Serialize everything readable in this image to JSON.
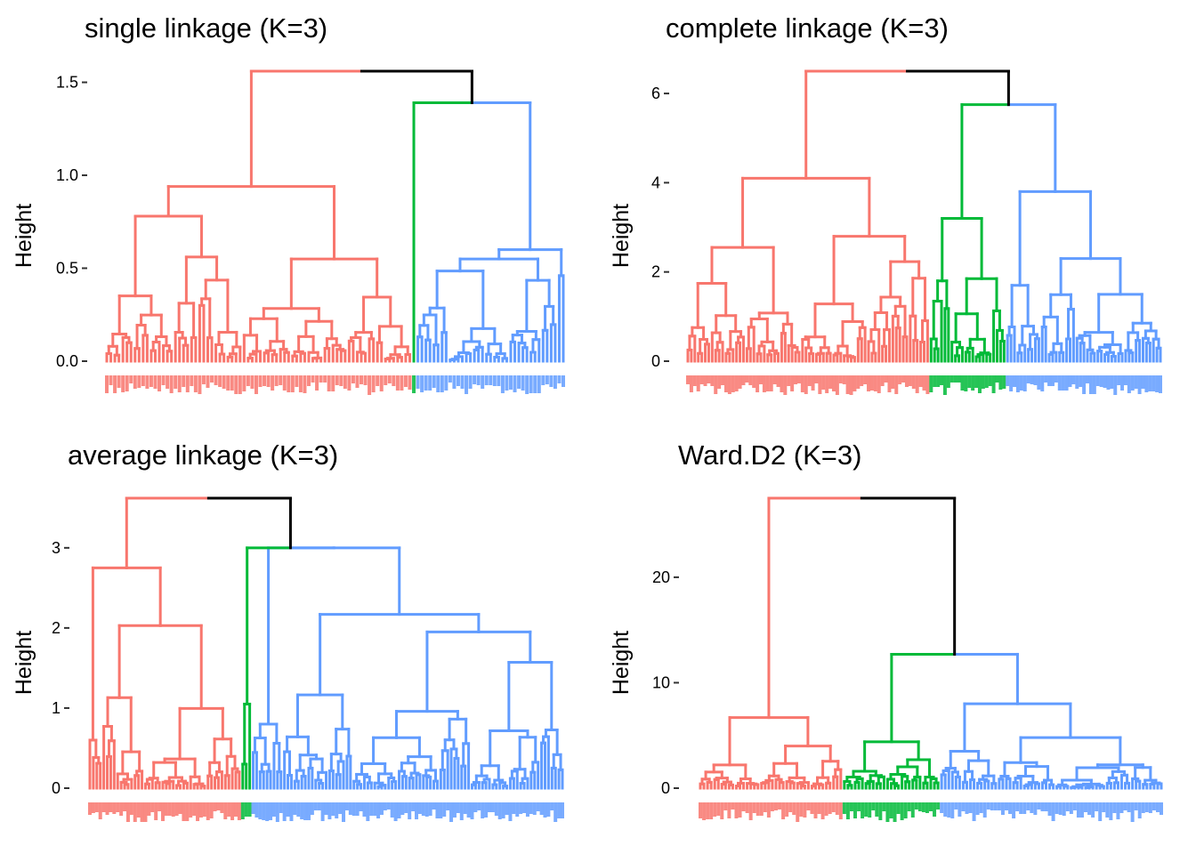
{
  "colors": {
    "cluster1": "#F8766D",
    "cluster2": "#00BA38",
    "cluster3": "#619CFF",
    "root": "#000000"
  },
  "chart_data": [
    {
      "type": "dendrogram",
      "title": "single linkage (K=3)",
      "ylabel": "Height",
      "yticks": [
        0.0,
        0.5,
        1.0,
        1.5
      ],
      "tick_labels": [
        "0.0",
        "0.5",
        "1.0",
        "1.5"
      ],
      "ylim": [
        0,
        1.56
      ],
      "k": 3,
      "root_height": 1.56,
      "clusters": [
        {
          "color": "cluster1",
          "leaves": 76,
          "height": 0.94,
          "sub": [
            {
              "frac": 0.45,
              "h": 0.78
            },
            {
              "frac": 0.55,
              "h": 0.55
            }
          ]
        },
        {
          "color": "cluster2",
          "leaves": 1,
          "height": 0.0,
          "sub": []
        },
        {
          "color": "cluster3",
          "leaves": 37,
          "height": 0.6,
          "sub": [
            {
              "frac": 0.95,
              "h": 0.55
            },
            {
              "frac": 0.05,
              "h": 0.46
            }
          ]
        }
      ],
      "merges": [
        {
          "left": 1,
          "right": 2,
          "h": 1.39
        },
        {
          "left": 0,
          "right": 1,
          "h": 1.56
        }
      ]
    },
    {
      "type": "dendrogram",
      "title": "complete linkage (K=3)",
      "ylabel": "Height",
      "yticks": [
        0,
        2,
        4,
        6
      ],
      "tick_labels": [
        "0",
        "2",
        "4",
        "6"
      ],
      "ylim": [
        0,
        6.5
      ],
      "k": 3,
      "root_height": 6.5,
      "clusters": [
        {
          "color": "cluster1",
          "leaves": 70,
          "height": 4.1,
          "sub": [
            {
              "frac": 0.47,
              "h": 2.55
            },
            {
              "frac": 0.53,
              "h": 2.8
            }
          ]
        },
        {
          "color": "cluster2",
          "leaves": 22,
          "height": 3.2,
          "sub": [
            {
              "frac": 0.25,
              "h": 1.8
            },
            {
              "frac": 0.75,
              "h": 1.85
            }
          ]
        },
        {
          "color": "cluster3",
          "leaves": 45,
          "height": 3.8,
          "sub": [
            {
              "frac": 0.22,
              "h": 1.7
            },
            {
              "frac": 0.78,
              "h": 2.3
            }
          ]
        }
      ],
      "merges": [
        {
          "left": 1,
          "right": 2,
          "h": 5.75
        },
        {
          "left": 0,
          "right": 1,
          "h": 6.5
        }
      ]
    },
    {
      "type": "dendrogram",
      "title": "average linkage (K=3)",
      "ylabel": "Height",
      "yticks": [
        0,
        1,
        2,
        3
      ],
      "tick_labels": [
        "0",
        "1",
        "2",
        "3"
      ],
      "ylim": [
        0,
        3.62
      ],
      "k": 3,
      "root_height": 3.62,
      "clusters": [
        {
          "color": "cluster1",
          "leaves": 44,
          "height": 2.75,
          "sub": [
            {
              "frac": 0.1,
              "h": 0.6
            },
            {
              "frac": 0.9,
              "h": 2.03
            }
          ]
        },
        {
          "color": "cluster2",
          "leaves": 3,
          "height": 1.05,
          "sub": [
            {
              "frac": 0.5,
              "h": 0.3
            },
            {
              "frac": 0.5,
              "h": 0.3
            }
          ]
        },
        {
          "color": "cluster3",
          "leaves": 90,
          "height": 3.0,
          "sub": [
            {
              "frac": 0.1,
              "h": 0.8
            },
            {
              "frac": 0.9,
              "h": 2.17
            }
          ]
        }
      ],
      "merges": [
        {
          "left": 1,
          "right": 2,
          "h": 3.0
        },
        {
          "left": 0,
          "right": 1,
          "h": 3.62
        }
      ]
    },
    {
      "type": "dendrogram",
      "title": "Ward.D2 (K=3)",
      "ylabel": "Height",
      "yticks": [
        0,
        10,
        20
      ],
      "tick_labels": [
        "0",
        "10",
        "20"
      ],
      "ylim": [
        0,
        27.5
      ],
      "k": 3,
      "root_height": 27.5,
      "clusters": [
        {
          "color": "cluster1",
          "leaves": 40,
          "height": 6.7,
          "sub": [
            {
              "frac": 0.42,
              "h": 2.2
            },
            {
              "frac": 0.58,
              "h": 4.0
            }
          ]
        },
        {
          "color": "cluster2",
          "leaves": 27,
          "height": 4.4,
          "sub": [
            {
              "frac": 0.45,
              "h": 1.6
            },
            {
              "frac": 0.55,
              "h": 2.7
            }
          ]
        },
        {
          "color": "cluster3",
          "leaves": 62,
          "height": 8.0,
          "sub": [
            {
              "frac": 0.25,
              "h": 3.5
            },
            {
              "frac": 0.75,
              "h": 4.8
            }
          ]
        }
      ],
      "merges": [
        {
          "left": 1,
          "right": 2,
          "h": 12.7
        },
        {
          "left": 0,
          "right": 1,
          "h": 27.5
        }
      ]
    }
  ]
}
